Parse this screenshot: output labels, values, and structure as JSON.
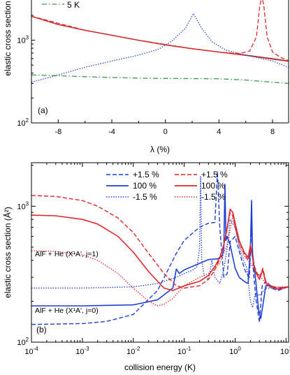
{
  "colors": {
    "blue": "#1f3fd6",
    "red": "#e0262a",
    "green": "#3a9a4a",
    "dark": "#444444",
    "axis": "#000000"
  },
  "chart_data": [
    {
      "type": "line",
      "panel_label": "(a)",
      "xlabel": "λ (%)",
      "ylabel": "elastic cross section",
      "xlim": [
        -10,
        9.2
      ],
      "ylim_log10": [
        2,
        3.52
      ],
      "y_scale": "log",
      "x_ticks": [
        -8,
        -4,
        0,
        4,
        8
      ],
      "x_tick_labels": [
        "-8",
        "-4",
        "0",
        "4",
        "8"
      ],
      "y_ticks": [
        100,
        1000
      ],
      "y_tick_labels": [
        "10²",
        "10³"
      ],
      "legend_visible": [
        {
          "name": "5 K",
          "style": "dash-dot",
          "color": "green"
        }
      ],
      "series": [
        {
          "name": "5 K",
          "style": "dash-dot",
          "color": "green",
          "x": [
            -10,
            -8,
            -6,
            -4,
            -2,
            0,
            2,
            4,
            6,
            8,
            9.2
          ],
          "y": [
            380,
            372,
            362,
            354,
            348,
            345,
            344,
            342,
            330,
            310,
            300
          ]
        },
        {
          "name": "",
          "style": "solid",
          "color": "dark",
          "x": [
            -10,
            -8,
            -6,
            -4,
            -2,
            0,
            2,
            4,
            6,
            8,
            9.2
          ],
          "y": [
            1950,
            1550,
            1320,
            1150,
            1000,
            880,
            790,
            720,
            660,
            600,
            560
          ]
        },
        {
          "name": "",
          "style": "solid",
          "color": "red",
          "x": [
            -10,
            -8,
            -6,
            -4,
            -2,
            0,
            2,
            4,
            6,
            8,
            9.2
          ],
          "y": [
            1940,
            1545,
            1315,
            1145,
            998,
            878,
            788,
            718,
            655,
            590,
            555
          ]
        },
        {
          "name": "",
          "style": "dotted",
          "color": "blue",
          "x": [
            -10,
            -8,
            -6,
            -4,
            -2,
            -0.5,
            0.5,
            1.5,
            2.1,
            2.7,
            3.5,
            4.5,
            6,
            8,
            9.2
          ],
          "y": [
            310,
            380,
            470,
            560,
            660,
            780,
            980,
            1400,
            2100,
            1400,
            950,
            760,
            660,
            560,
            470
          ]
        },
        {
          "name": "",
          "style": "dashed",
          "color": "red",
          "x": [
            -10,
            -6,
            -2,
            2,
            4,
            5.5,
            6.3,
            6.8,
            7.05,
            7.2,
            7.35,
            7.6,
            8,
            8.6,
            9.2
          ],
          "y": [
            1950,
            1320,
            1000,
            790,
            718,
            690,
            740,
            1100,
            2600,
            3400,
            2600,
            1100,
            720,
            620,
            565
          ]
        }
      ]
    },
    {
      "type": "line",
      "panel_label": "(b)",
      "xlabel": "collision energy (K)",
      "ylabel": "elastic cross section (Å²)",
      "xlim_log10": [
        -4,
        1.05
      ],
      "ylim_log10": [
        2,
        3.32
      ],
      "x_scale": "log",
      "y_scale": "log",
      "x_ticks_log10": [
        -4,
        -3,
        -2,
        -1,
        0,
        1
      ],
      "x_tick_labels": [
        "10⁻⁴",
        "10⁻³",
        "10⁻²",
        "10⁻¹",
        "10⁰",
        "10¹"
      ],
      "y_ticks": [
        100,
        1000
      ],
      "y_tick_labels": [
        "10²",
        "10³"
      ],
      "legend_placement": "top-center",
      "annotations": [
        "AlF + He (X¹A', j=1)",
        "AlF + He (X¹A', j=0)"
      ],
      "series": [
        {
          "name": "+1.5 %",
          "group": "j=0",
          "style": "dashed",
          "color": "blue",
          "x": [
            0.0001,
            0.001,
            0.003,
            0.01,
            0.03,
            0.07,
            0.1,
            0.15,
            0.2,
            0.3,
            0.4,
            0.45,
            0.5,
            0.6,
            0.7,
            0.8,
            1.0,
            1.3,
            1.6,
            1.9,
            2.1,
            2.3,
            2.6,
            3.0,
            3.4,
            4.0,
            5.0,
            7.0,
            11.0
          ],
          "y": [
            135,
            137,
            142,
            160,
            240,
            450,
            560,
            640,
            700,
            750,
            760,
            1800,
            700,
            300,
            320,
            550,
            600,
            420,
            330,
            300,
            700,
            320,
            200,
            140,
            260,
            280,
            250,
            240,
            255
          ]
        },
        {
          "name": "100 %",
          "group": "j=0",
          "style": "solid",
          "color": "blue",
          "x": [
            0.0001,
            0.001,
            0.01,
            0.03,
            0.06,
            0.07,
            0.08,
            0.1,
            0.2,
            0.3,
            0.45,
            0.5,
            0.55,
            0.6,
            0.63,
            0.66,
            0.7,
            0.8,
            0.9,
            1.0,
            1.2,
            1.5,
            1.8,
            2.0,
            2.1,
            2.2,
            2.5,
            2.9,
            3.2,
            4.0,
            5.0,
            7.0,
            11.0
          ],
          "y": [
            185,
            185,
            188,
            205,
            250,
            345,
            320,
            340,
            380,
            405,
            410,
            420,
            430,
            480,
            1450,
            560,
            600,
            520,
            420,
            350,
            300,
            280,
            270,
            500,
            1100,
            450,
            300,
            170,
            150,
            260,
            260,
            245,
            255
          ]
        },
        {
          "name": "-1.5 %",
          "group": "j=0",
          "style": "dotted",
          "color": "blue",
          "x": [
            0.0001,
            0.001,
            0.01,
            0.03,
            0.07,
            0.1,
            0.15,
            0.18,
            0.2,
            0.21,
            0.22,
            0.25,
            0.3,
            0.35,
            0.4,
            0.5,
            0.6,
            0.7,
            0.8,
            1.0,
            1.3,
            1.7,
            2.0,
            2.2,
            2.5,
            3.0,
            4.0,
            5.0,
            11.0
          ],
          "y": [
            250,
            250,
            255,
            270,
            300,
            320,
            340,
            360,
            500,
            1650,
            400,
            300,
            290,
            400,
            300,
            270,
            340,
            500,
            800,
            700,
            450,
            350,
            200,
            180,
            230,
            220,
            250,
            250,
            255
          ]
        },
        {
          "name": "+1.5 %",
          "group": "j=1",
          "style": "dashed",
          "color": "red",
          "x": [
            0.0001,
            0.0003,
            0.001,
            0.002,
            0.005,
            0.01,
            0.02,
            0.04,
            0.07,
            0.1,
            0.2,
            0.3,
            0.4,
            0.5,
            0.6,
            0.7,
            0.8,
            0.9,
            1.0,
            1.2,
            1.5,
            1.8,
            2.0,
            2.3,
            2.6,
            3.0,
            3.5,
            4.0,
            5.0,
            7.0,
            11.0
          ],
          "y": [
            1200,
            1180,
            1100,
            1000,
            820,
            640,
            450,
            320,
            260,
            250,
            260,
            290,
            340,
            410,
            520,
            680,
            900,
            850,
            700,
            550,
            450,
            400,
            500,
            380,
            330,
            300,
            350,
            280,
            260,
            250,
            255
          ]
        },
        {
          "name": "100 %",
          "group": "j=1",
          "style": "solid",
          "color": "red",
          "x": [
            0.0001,
            0.0003,
            0.001,
            0.002,
            0.005,
            0.01,
            0.02,
            0.04,
            0.06,
            0.1,
            0.2,
            0.3,
            0.4,
            0.5,
            0.6,
            0.7,
            0.8,
            0.9,
            1.0,
            1.2,
            1.5,
            1.8,
            2.0,
            2.3,
            2.6,
            3.0,
            3.5,
            4.0,
            5.0,
            7.0,
            11.0
          ],
          "y": [
            860,
            850,
            800,
            740,
            600,
            460,
            330,
            250,
            240,
            260,
            280,
            310,
            360,
            420,
            520,
            700,
            950,
            900,
            750,
            560,
            460,
            420,
            520,
            380,
            320,
            290,
            340,
            270,
            255,
            245,
            255
          ]
        },
        {
          "name": "-1.5 %",
          "group": "j=1",
          "style": "dotted",
          "color": "red",
          "x": [
            0.0001,
            0.0003,
            0.001,
            0.002,
            0.005,
            0.01,
            0.02,
            0.03,
            0.04,
            0.06,
            0.1,
            0.2,
            0.3,
            0.5,
            0.7,
            0.9,
            1.0,
            1.2,
            1.5,
            2.0,
            2.5,
            3.0,
            4.0,
            5.0,
            11.0
          ],
          "y": [
            470,
            465,
            440,
            400,
            320,
            250,
            200,
            185,
            190,
            210,
            260,
            300,
            320,
            380,
            520,
            850,
            700,
            520,
            430,
            380,
            330,
            310,
            270,
            255,
            255
          ]
        }
      ]
    }
  ]
}
